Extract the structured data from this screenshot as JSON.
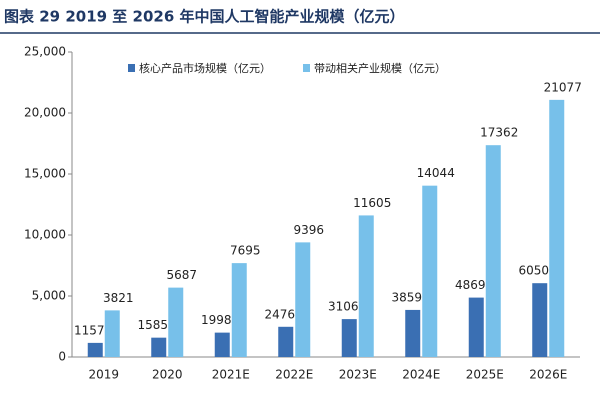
{
  "chart_data": {
    "type": "bar",
    "title": "图表 29 2019 至 2026 年中国人工智能产业规模（亿元）",
    "categories": [
      "2019",
      "2020",
      "2021E",
      "2022E",
      "2023E",
      "2024E",
      "2025E",
      "2026E"
    ],
    "series": [
      {
        "name": "核心产品市场规模（亿元）",
        "color": "#3a6fb3",
        "values": [
          1157,
          1585,
          1998,
          2476,
          3106,
          3859,
          4869,
          6050
        ]
      },
      {
        "name": "带动相关产业规模（亿元）",
        "color": "#77c0ea",
        "values": [
          3821,
          5687,
          7695,
          9396,
          11605,
          14044,
          17362,
          21077
        ]
      }
    ],
    "ylim": [
      0,
      25000
    ],
    "yticks": [
      0,
      {
        "value": 5000,
        "label": "5,000"
      },
      {
        "value": 10000,
        "label": "10,000"
      },
      {
        "value": 15000,
        "label": "15,000"
      },
      {
        "value": 20000,
        "label": "20,000"
      },
      {
        "value": 25000,
        "label": "25,000"
      }
    ],
    "grid": false
  }
}
